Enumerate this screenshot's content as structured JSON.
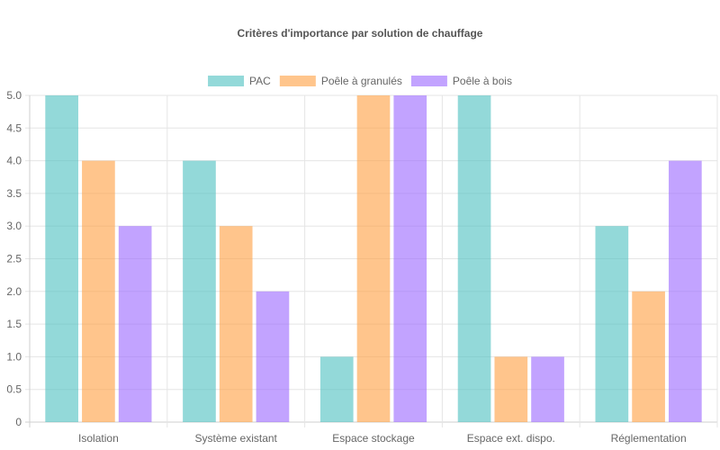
{
  "chart_data": {
    "type": "bar",
    "title": "Critères d'importance par solution de chauffage",
    "xlabel": "",
    "ylabel": "",
    "categories": [
      "Isolation",
      "Système existant",
      "Espace stockage",
      "Espace ext. dispo.",
      "Réglementation"
    ],
    "series": [
      {
        "name": "PAC",
        "values": [
          5,
          4,
          1,
          5,
          3
        ],
        "color": "#4bc0c0"
      },
      {
        "name": "Poêle à granulés",
        "values": [
          4,
          3,
          5,
          1,
          2
        ],
        "color": "#ff9f40"
      },
      {
        "name": "Poêle à bois",
        "values": [
          3,
          2,
          5,
          1,
          4
        ],
        "color": "#9966ff"
      }
    ],
    "ylim": [
      0,
      5
    ],
    "y_ticks": [
      "0",
      "0.5",
      "1.0",
      "1.5",
      "2.0",
      "2.5",
      "3.0",
      "3.5",
      "4.0",
      "4.5",
      "5.0"
    ],
    "grid": true,
    "legend_position": "top"
  }
}
